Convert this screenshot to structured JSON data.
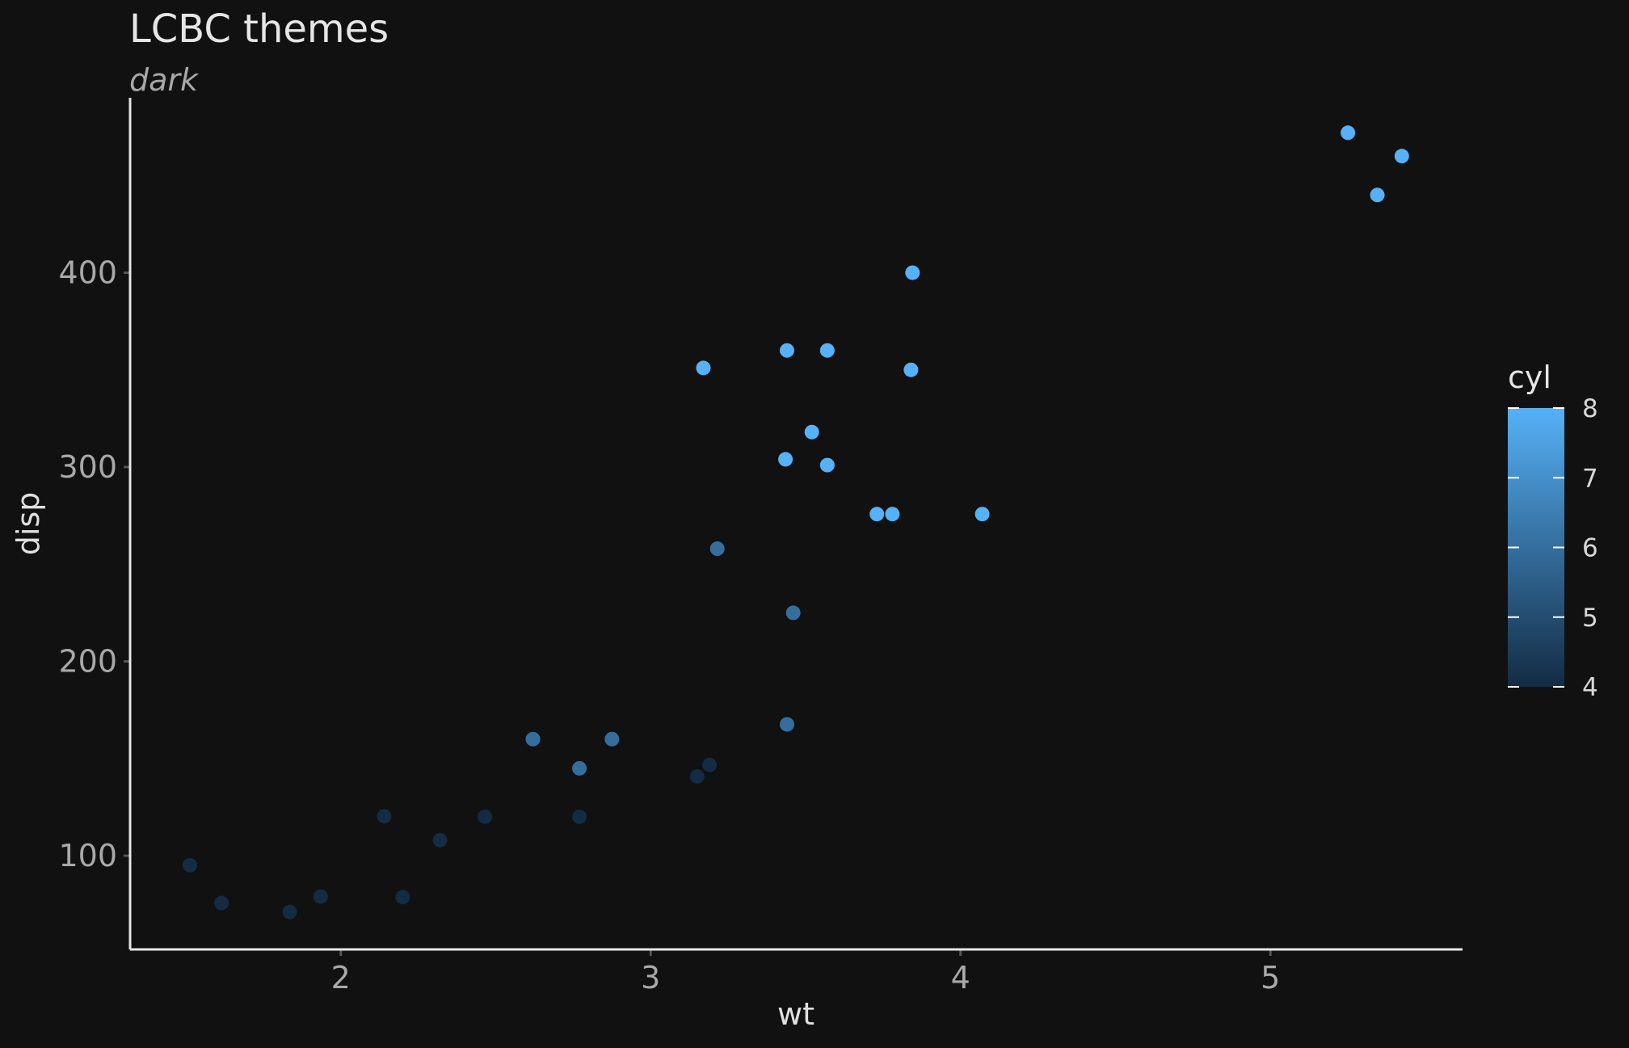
{
  "chart_data": {
    "type": "scatter",
    "title": "LCBC themes",
    "subtitle": "dark",
    "xlabel": "wt",
    "ylabel": "disp",
    "xlim": [
      1.32,
      5.62
    ],
    "ylim": [
      51.8,
      490
    ],
    "xticks": [
      2,
      3,
      4,
      5
    ],
    "yticks": [
      100,
      200,
      300,
      400
    ],
    "grid": false,
    "legend": {
      "title": "cyl",
      "position": "right",
      "type": "colorbar",
      "min": 4,
      "max": 8,
      "ticks": [
        4,
        5,
        6,
        7,
        8
      ],
      "color_low": "#132b43",
      "color_high": "#56b1f7"
    },
    "colors": {
      "background": "#111112",
      "axis_line": "#e6e6e6",
      "tick_mark": "#555555"
    },
    "points": [
      {
        "x": 2.62,
        "y": 160.0,
        "cyl": 6
      },
      {
        "x": 2.875,
        "y": 160.0,
        "cyl": 6
      },
      {
        "x": 2.32,
        "y": 108.0,
        "cyl": 4
      },
      {
        "x": 3.215,
        "y": 258.0,
        "cyl": 6
      },
      {
        "x": 3.44,
        "y": 360.0,
        "cyl": 8
      },
      {
        "x": 3.46,
        "y": 225.0,
        "cyl": 6
      },
      {
        "x": 3.57,
        "y": 360.0,
        "cyl": 8
      },
      {
        "x": 3.19,
        "y": 146.7,
        "cyl": 4
      },
      {
        "x": 3.15,
        "y": 140.8,
        "cyl": 4
      },
      {
        "x": 3.44,
        "y": 167.6,
        "cyl": 6
      },
      {
        "x": 2.77,
        "y": 145.0,
        "cyl": 6
      },
      {
        "x": 4.07,
        "y": 275.8,
        "cyl": 8
      },
      {
        "x": 3.73,
        "y": 275.8,
        "cyl": 8
      },
      {
        "x": 3.78,
        "y": 275.8,
        "cyl": 8
      },
      {
        "x": 5.25,
        "y": 472.0,
        "cyl": 8
      },
      {
        "x": 5.424,
        "y": 460.0,
        "cyl": 8
      },
      {
        "x": 5.345,
        "y": 440.0,
        "cyl": 8
      },
      {
        "x": 2.2,
        "y": 78.7,
        "cyl": 4
      },
      {
        "x": 1.615,
        "y": 75.7,
        "cyl": 4
      },
      {
        "x": 1.835,
        "y": 71.1,
        "cyl": 4
      },
      {
        "x": 2.465,
        "y": 120.1,
        "cyl": 4
      },
      {
        "x": 3.52,
        "y": 318.0,
        "cyl": 8
      },
      {
        "x": 3.435,
        "y": 304.0,
        "cyl": 8
      },
      {
        "x": 3.84,
        "y": 350.0,
        "cyl": 8
      },
      {
        "x": 3.845,
        "y": 400.0,
        "cyl": 8
      },
      {
        "x": 1.935,
        "y": 79.0,
        "cyl": 4
      },
      {
        "x": 2.14,
        "y": 120.3,
        "cyl": 4
      },
      {
        "x": 1.513,
        "y": 95.1,
        "cyl": 4
      },
      {
        "x": 3.17,
        "y": 351.0,
        "cyl": 8
      },
      {
        "x": 2.77,
        "y": 120.0,
        "cyl": 4
      },
      {
        "x": 3.57,
        "y": 301.0,
        "cyl": 8
      }
    ]
  }
}
